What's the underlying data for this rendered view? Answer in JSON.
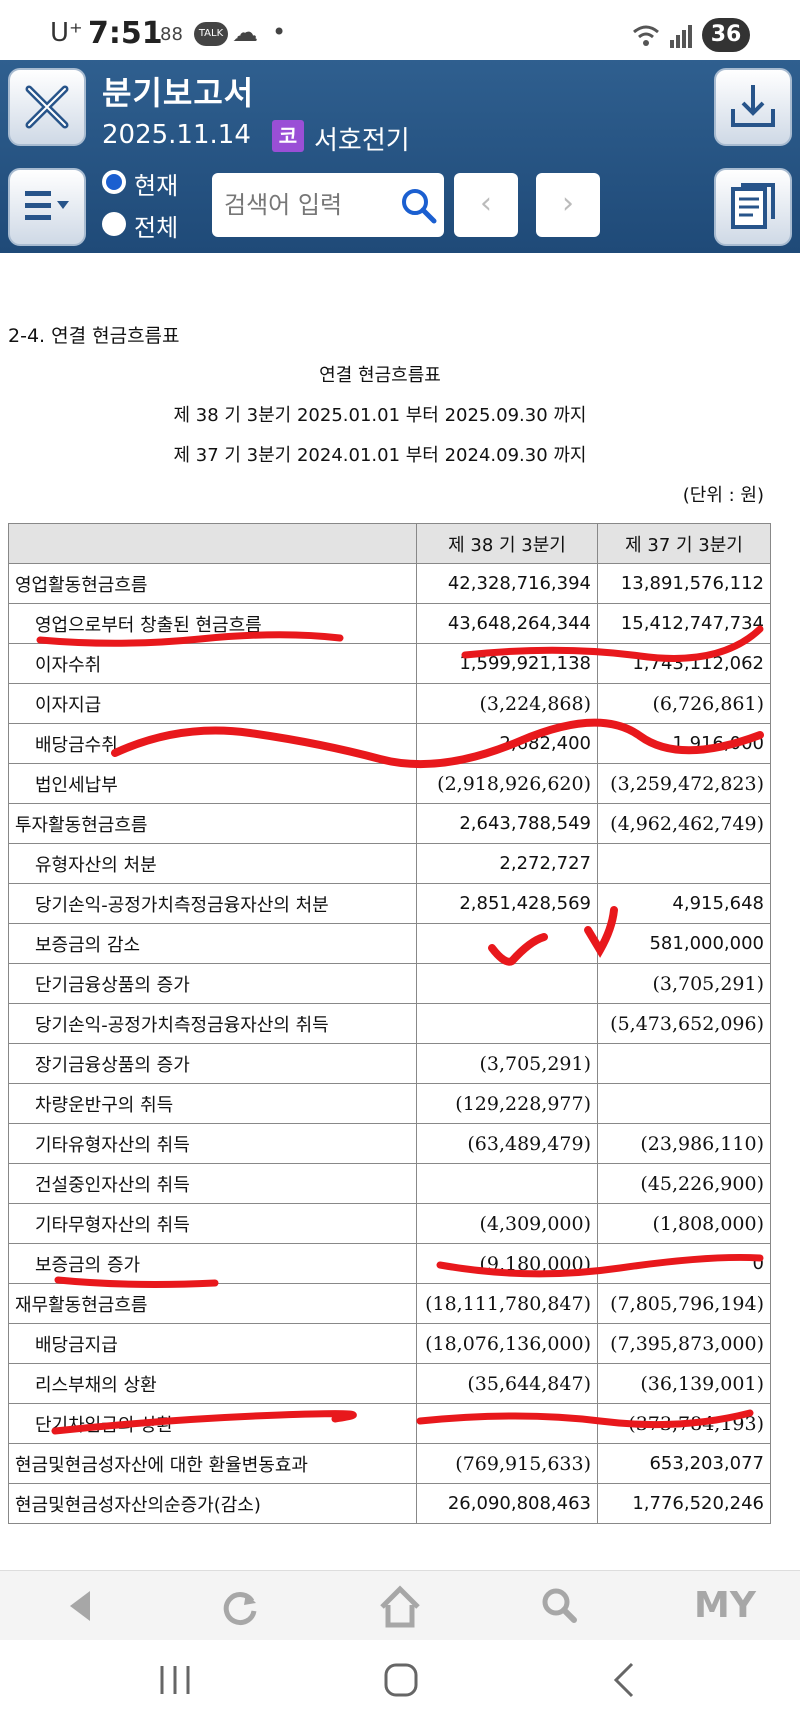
{
  "status": {
    "carrier": "U⁺",
    "time": "7:51",
    "icon_apps": "88",
    "icon_talk": "TALK",
    "icon_cloud": "☁",
    "icon_dot": "•",
    "signal": "wifi-signal-bars",
    "battery": "36"
  },
  "header": {
    "title": "분기보고서",
    "date": "2025.11.14",
    "market_badge": "코",
    "company": "서호전기",
    "scope_current": "현재",
    "scope_all": "전체",
    "search_placeholder": "검색어 입력",
    "prev": "‹",
    "next": "›"
  },
  "doc": {
    "section_title": "2-4. 연결 현금흐름표",
    "title": "연결 현금흐름표",
    "period1": "제 38 기 3분기 2025.01.01 부터 2025.09.30 까지",
    "period2": "제 37 기 3분기 2024.01.01 부터 2024.09.30 까지",
    "unit": "(단위 : 원)",
    "columns": [
      "",
      "제 38 기 3분기",
      "제 37 기 3분기"
    ],
    "rows": [
      {
        "label": "영업활동현금흐름",
        "v1": "42,328,716,394",
        "v2": "13,891,576,112"
      },
      {
        "label": "영업으로부터 창출된 현금흐름",
        "v1": "43,648,264,344",
        "v2": "15,412,747,734"
      },
      {
        "label": "이자수취",
        "v1": "1,599,921,138",
        "v2": "1,743,112,062"
      },
      {
        "label": "이자지급",
        "v1": "(3,224,868)",
        "v2": "(6,726,861)"
      },
      {
        "label": "배당금수취",
        "v1": "2,682,400",
        "v2": "1,916,000"
      },
      {
        "label": "법인세납부",
        "v1": "(2,918,926,620)",
        "v2": "(3,259,472,823)"
      },
      {
        "label": "투자활동현금흐름",
        "v1": "2,643,788,549",
        "v2": "(4,962,462,749)"
      },
      {
        "label": "유형자산의 처분",
        "v1": "2,272,727",
        "v2": ""
      },
      {
        "label": "당기손익-공정가치측정금융자산의 처분",
        "v1": "2,851,428,569",
        "v2": "4,915,648"
      },
      {
        "label": "보증금의 감소",
        "v1": "",
        "v2": "581,000,000"
      },
      {
        "label": "단기금융상품의 증가",
        "v1": "",
        "v2": "(3,705,291)"
      },
      {
        "label": "당기손익-공정가치측정금융자산의 취득",
        "v1": "",
        "v2": "(5,473,652,096)"
      },
      {
        "label": "장기금융상품의 증가",
        "v1": "(3,705,291)",
        "v2": ""
      },
      {
        "label": "차량운반구의 취득",
        "v1": "(129,228,977)",
        "v2": ""
      },
      {
        "label": "기타유형자산의 취득",
        "v1": "(63,489,479)",
        "v2": "(23,986,110)"
      },
      {
        "label": "건설중인자산의 취득",
        "v1": "",
        "v2": "(45,226,900)"
      },
      {
        "label": "기타무형자산의 취득",
        "v1": "(4,309,000)",
        "v2": "(1,808,000)"
      },
      {
        "label": "보증금의 증가",
        "v1": "(9,180,000)",
        "v2": "0"
      },
      {
        "label": "재무활동현금흐름",
        "v1": "(18,111,780,847)",
        "v2": "(7,805,796,194)"
      },
      {
        "label": "배당금지급",
        "v1": "(18,076,136,000)",
        "v2": "(7,395,873,000)"
      },
      {
        "label": "리스부채의 상환",
        "v1": "(35,644,847)",
        "v2": "(36,139,001)"
      },
      {
        "label": "단기차입금의 상환",
        "v1": "",
        "v2": "(373,784,193)"
      },
      {
        "label": "현금및현금성자산에 대한 환율변동효과",
        "v1": "(769,915,633)",
        "v2": "653,203,077"
      },
      {
        "label": "현금및현금성자산의순증가(감소)",
        "v1": "26,090,808,463",
        "v2": "1,776,520,246"
      }
    ]
  },
  "toolbar": {
    "back_icon": "back-triangle-icon",
    "refresh_icon": "refresh-icon",
    "home_icon": "home-icon",
    "search_icon": "search-icon",
    "my_label": "MY"
  },
  "colors": {
    "header_blue": "#24507f",
    "annotation_red": "#e8181c",
    "search_blue": "#1b5fd0",
    "badge_purple": "#9a4fd6"
  }
}
